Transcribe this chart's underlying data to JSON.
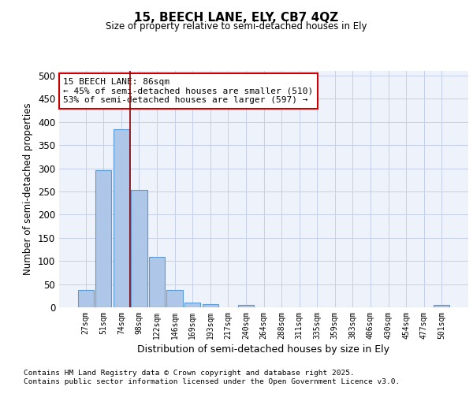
{
  "title1": "15, BEECH LANE, ELY, CB7 4QZ",
  "title2": "Size of property relative to semi-detached houses in Ely",
  "xlabel": "Distribution of semi-detached houses by size in Ely",
  "ylabel": "Number of semi-detached properties",
  "categories": [
    "27sqm",
    "51sqm",
    "74sqm",
    "98sqm",
    "122sqm",
    "146sqm",
    "169sqm",
    "193sqm",
    "217sqm",
    "240sqm",
    "264sqm",
    "288sqm",
    "311sqm",
    "335sqm",
    "359sqm",
    "383sqm",
    "406sqm",
    "430sqm",
    "454sqm",
    "477sqm",
    "501sqm"
  ],
  "values": [
    37,
    296,
    385,
    254,
    108,
    37,
    11,
    7,
    0,
    5,
    0,
    0,
    0,
    0,
    0,
    0,
    0,
    0,
    0,
    0,
    5
  ],
  "bar_color": "#aec6e8",
  "bar_edge_color": "#5b9bd5",
  "vline_color": "#8b0000",
  "annotation_text": "15 BEECH LANE: 86sqm\n← 45% of semi-detached houses are smaller (510)\n53% of semi-detached houses are larger (597) →",
  "annotation_box_color": "#cc0000",
  "ylim": [
    0,
    510
  ],
  "yticks": [
    0,
    50,
    100,
    150,
    200,
    250,
    300,
    350,
    400,
    450,
    500
  ],
  "footer_line1": "Contains HM Land Registry data © Crown copyright and database right 2025.",
  "footer_line2": "Contains public sector information licensed under the Open Government Licence v3.0.",
  "bg_color": "#eef2fb",
  "grid_color": "#c5cfe8"
}
